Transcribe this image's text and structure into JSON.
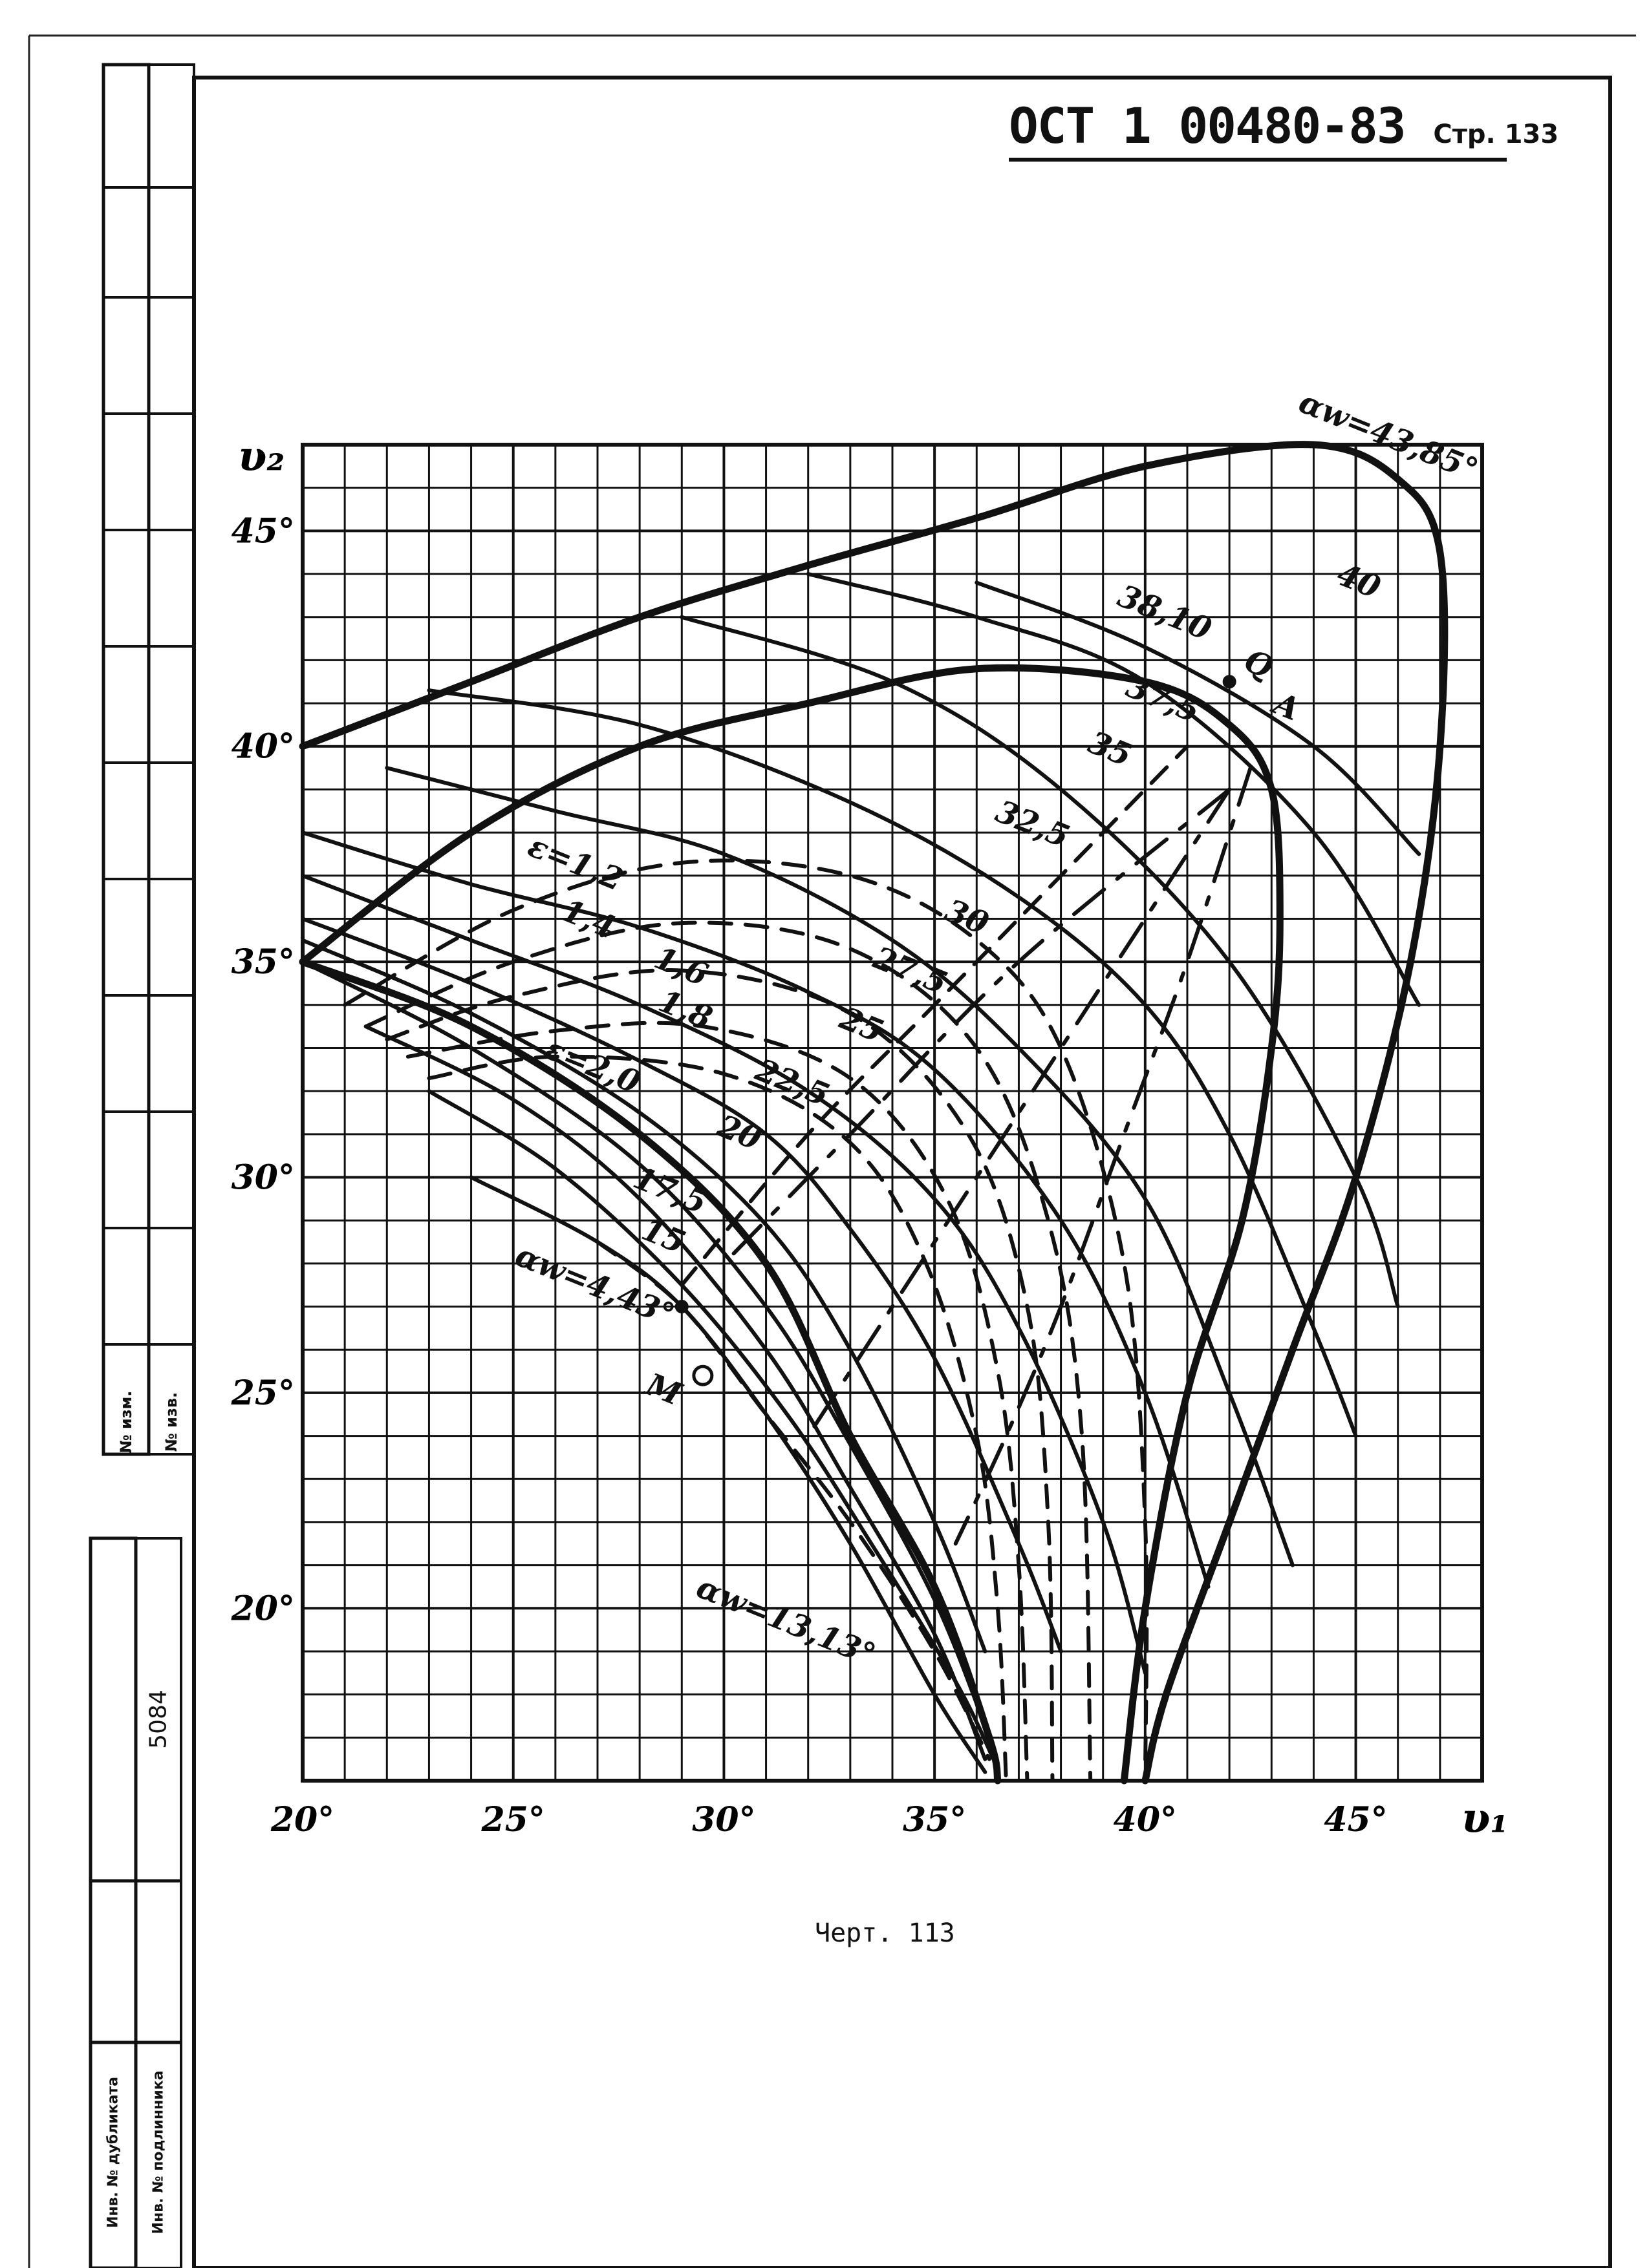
{
  "header": {
    "standard": "ОСТ 1 00480-83",
    "page_label": "Стр. 133"
  },
  "caption": "Черт. 113",
  "side_stamp": {
    "izm_label_1": "№ изм.",
    "izm_label_2": "№ изв.",
    "inventory_number": "5084",
    "dup_label": "Инв. № дубликата",
    "orig_label": "Инв. № подлинника"
  },
  "chart_data": {
    "type": "line",
    "xlabel": "υ₁",
    "ylabel": "υ₂",
    "xlim": [
      20,
      48
    ],
    "ylim": [
      16,
      47
    ],
    "grid": true,
    "x_ticks": [
      "20°",
      "25°",
      "30°",
      "35°",
      "40°",
      "45°"
    ],
    "y_ticks": [
      "20°",
      "25°",
      "30°",
      "35°",
      "40°",
      "45°"
    ],
    "series": [
      {
        "name": "αw=43,85°",
        "style": "envelope",
        "points": [
          [
            20,
            40
          ],
          [
            24,
            41.5
          ],
          [
            28,
            43
          ],
          [
            32,
            44.2
          ],
          [
            36,
            45.3
          ],
          [
            40,
            46.5
          ],
          [
            44,
            47
          ],
          [
            46,
            46.2
          ],
          [
            47,
            44.5
          ],
          [
            47,
            40
          ],
          [
            46.3,
            35
          ],
          [
            45,
            30
          ],
          [
            43.5,
            26
          ],
          [
            42,
            22
          ],
          [
            40.5,
            18
          ],
          [
            40,
            16
          ]
        ]
      },
      {
        "name": "Q",
        "style": "envelope",
        "points": [
          [
            20,
            35
          ],
          [
            24,
            38
          ],
          [
            28,
            40
          ],
          [
            32,
            41
          ],
          [
            36,
            41.8
          ],
          [
            40,
            41.5
          ],
          [
            42,
            40.5
          ],
          [
            43,
            39
          ],
          [
            43.2,
            36
          ],
          [
            43,
            33
          ],
          [
            42.3,
            29
          ],
          [
            41,
            25
          ],
          [
            40,
            20
          ],
          [
            39.5,
            16
          ]
        ]
      },
      {
        "name": "αw=13,13°",
        "style": "envelope",
        "points": [
          [
            20,
            35
          ],
          [
            24,
            33.5
          ],
          [
            28,
            31
          ],
          [
            31,
            28
          ],
          [
            33,
            24
          ],
          [
            35,
            20.5
          ],
          [
            36.3,
            17
          ],
          [
            36.5,
            16
          ]
        ]
      },
      {
        "name": "40",
        "style": "family",
        "points": [
          [
            36,
            43.8
          ],
          [
            40,
            42.3
          ],
          [
            44,
            40
          ],
          [
            46.5,
            37.5
          ]
        ]
      },
      {
        "name": "38,10",
        "style": "family",
        "points": [
          [
            32,
            44
          ],
          [
            36,
            43
          ],
          [
            40,
            41.5
          ],
          [
            44,
            38
          ],
          [
            46.5,
            34
          ]
        ]
      },
      {
        "name": "37,5",
        "style": "family",
        "points": [
          [
            29,
            43
          ],
          [
            34,
            41.5
          ],
          [
            38,
            39
          ],
          [
            42,
            35
          ],
          [
            45,
            30
          ],
          [
            46,
            27
          ]
        ]
      },
      {
        "name": "35",
        "style": "family",
        "points": [
          [
            23,
            41.3
          ],
          [
            28,
            40.5
          ],
          [
            33,
            38.7
          ],
          [
            37,
            36.5
          ],
          [
            40,
            34
          ],
          [
            42,
            31
          ],
          [
            44,
            26.5
          ],
          [
            45,
            24
          ]
        ]
      },
      {
        "name": "32,5",
        "style": "family",
        "points": [
          [
            22,
            39.5
          ],
          [
            26,
            38.5
          ],
          [
            30,
            37.5
          ],
          [
            34,
            35.5
          ],
          [
            37,
            33
          ],
          [
            40,
            29.5
          ],
          [
            42,
            25
          ],
          [
            43.5,
            21
          ]
        ]
      },
      {
        "name": "30",
        "style": "family",
        "points": [
          [
            20,
            38
          ],
          [
            24,
            36.8
          ],
          [
            28,
            35.8
          ],
          [
            32,
            34.3
          ],
          [
            35,
            32.5
          ],
          [
            38,
            29
          ],
          [
            40,
            25
          ],
          [
            41.5,
            20.5
          ]
        ]
      },
      {
        "name": "27,5",
        "style": "family",
        "points": [
          [
            20,
            37
          ],
          [
            24,
            35.5
          ],
          [
            28,
            34
          ],
          [
            32,
            32
          ],
          [
            35,
            29.5
          ],
          [
            37,
            26.5
          ],
          [
            39,
            22
          ],
          [
            40,
            18.5
          ]
        ]
      },
      {
        "name": "25",
        "style": "family",
        "points": [
          [
            20,
            36
          ],
          [
            24,
            34.5
          ],
          [
            28,
            32.7
          ],
          [
            31,
            31
          ],
          [
            33,
            28.8
          ],
          [
            35,
            25.8
          ],
          [
            37,
            21.5
          ],
          [
            38,
            19
          ]
        ]
      },
      {
        "name": "22,5",
        "style": "family",
        "points": [
          [
            20,
            35.5
          ],
          [
            24,
            33.8
          ],
          [
            28,
            31.5
          ],
          [
            31,
            28.9
          ],
          [
            33,
            26
          ],
          [
            35,
            22
          ],
          [
            36.2,
            19
          ]
        ]
      },
      {
        "name": "20",
        "style": "family",
        "points": [
          [
            20,
            35
          ],
          [
            24,
            33
          ],
          [
            28,
            30.3
          ],
          [
            31,
            27
          ],
          [
            33,
            23.8
          ],
          [
            35,
            20.2
          ],
          [
            36.3,
            17
          ]
        ]
      },
      {
        "name": "17,5",
        "style": "family",
        "points": [
          [
            21.5,
            33.5
          ],
          [
            25,
            31.8
          ],
          [
            28,
            29.5
          ],
          [
            31,
            26
          ],
          [
            33,
            22.8
          ],
          [
            35,
            19.4
          ],
          [
            36.2,
            16.5
          ]
        ]
      },
      {
        "name": "15",
        "style": "family",
        "points": [
          [
            23,
            32
          ],
          [
            26,
            30.2
          ],
          [
            29,
            27.5
          ],
          [
            31.5,
            24.5
          ],
          [
            33.5,
            21.5
          ],
          [
            35.5,
            18.3
          ],
          [
            36.4,
            16.5
          ]
        ]
      },
      {
        "name": "αw=4,43°",
        "style": "family",
        "points": [
          [
            24,
            30
          ],
          [
            27,
            28.5
          ],
          [
            29,
            27
          ],
          [
            31,
            24.5
          ],
          [
            33,
            21.5
          ],
          [
            35,
            18
          ],
          [
            36.2,
            16.2
          ]
        ]
      },
      {
        "name": "ε=1,2",
        "style": "family-dashed",
        "points": [
          [
            21,
            34
          ],
          [
            25,
            36.2
          ],
          [
            29,
            37.3
          ],
          [
            33,
            37
          ],
          [
            36,
            35.5
          ],
          [
            38,
            33
          ],
          [
            39.5,
            28
          ],
          [
            40,
            22
          ],
          [
            40,
            16
          ]
        ]
      },
      {
        "name": "1,4",
        "style": "family-dashed",
        "points": [
          [
            21.5,
            33.5
          ],
          [
            25,
            35
          ],
          [
            29,
            35.9
          ],
          [
            33,
            35.3
          ],
          [
            36,
            33
          ],
          [
            37.7,
            29
          ],
          [
            38.5,
            24
          ],
          [
            38.7,
            16
          ]
        ]
      },
      {
        "name": "1,6",
        "style": "family-dashed",
        "points": [
          [
            22,
            33.2
          ],
          [
            25,
            34.2
          ],
          [
            29,
            34.8
          ],
          [
            33,
            33.8
          ],
          [
            35.8,
            31
          ],
          [
            37.2,
            27
          ],
          [
            37.7,
            22
          ],
          [
            37.8,
            16
          ]
        ]
      },
      {
        "name": "1,8",
        "style": "family-dashed",
        "points": [
          [
            22.5,
            32.8
          ],
          [
            26,
            33.4
          ],
          [
            29.5,
            33.5
          ],
          [
            33,
            32.3
          ],
          [
            35.3,
            29.5
          ],
          [
            36.5,
            25.5
          ],
          [
            37,
            21
          ],
          [
            37.2,
            16
          ]
        ]
      },
      {
        "name": "ε=2,0",
        "style": "family-dashed",
        "points": [
          [
            23,
            32.3
          ],
          [
            26,
            32.8
          ],
          [
            30,
            32.4
          ],
          [
            33,
            30.8
          ],
          [
            34.8,
            28
          ],
          [
            36,
            24
          ],
          [
            36.5,
            20
          ],
          [
            36.7,
            16
          ]
        ]
      },
      {
        "name": "M",
        "style": "family-dashed",
        "points": [
          [
            27,
            28.5
          ],
          [
            29,
            27
          ],
          [
            31,
            24.5
          ],
          [
            33,
            22
          ],
          [
            35,
            19
          ],
          [
            36.3,
            16.5
          ]
        ]
      },
      {
        "name": "A",
        "style": "family-dashed",
        "points": [
          [
            29,
            27.5
          ],
          [
            32,
            31
          ],
          [
            35,
            34
          ],
          [
            38,
            37
          ],
          [
            41,
            40
          ]
        ]
      },
      {
        "name": "",
        "style": "diagonal",
        "points": [
          [
            42,
            39
          ],
          [
            37,
            35
          ],
          [
            33,
            31
          ],
          [
            30,
            28
          ]
        ]
      },
      {
        "name": "",
        "style": "diagonal",
        "points": [
          [
            42,
            39
          ],
          [
            40,
            36
          ],
          [
            38,
            33
          ],
          [
            36,
            30
          ],
          [
            34,
            27
          ],
          [
            32,
            24
          ]
        ]
      },
      {
        "name": "",
        "style": "diagonal",
        "points": [
          [
            42.5,
            39.5
          ],
          [
            41,
            35
          ],
          [
            39.5,
            31
          ],
          [
            38,
            27
          ],
          [
            36.7,
            24
          ],
          [
            35.5,
            21.5
          ]
        ]
      }
    ],
    "labels": [
      {
        "text": "αw=43,85°",
        "x": 43.6,
        "y": 47.8
      },
      {
        "text": "40",
        "x": 44.5,
        "y": 43.8
      },
      {
        "text": "38,10",
        "x": 39.3,
        "y": 43.3
      },
      {
        "text": "Q",
        "x": 42.3,
        "y": 41.8
      },
      {
        "text": "37,5",
        "x": 39.5,
        "y": 41.2
      },
      {
        "text": "A",
        "x": 43,
        "y": 40.8
      },
      {
        "text": "35",
        "x": 38.6,
        "y": 39.9
      },
      {
        "text": "32,5",
        "x": 36.4,
        "y": 38.3
      },
      {
        "text": "ε=1,2",
        "x": 25.3,
        "y": 37.5
      },
      {
        "text": "1,4",
        "x": 26.1,
        "y": 36
      },
      {
        "text": "30",
        "x": 35.2,
        "y": 36
      },
      {
        "text": "1,6",
        "x": 28.3,
        "y": 34.9
      },
      {
        "text": "27,5",
        "x": 33.5,
        "y": 34.9
      },
      {
        "text": "1,8",
        "x": 28.4,
        "y": 33.9
      },
      {
        "text": "25",
        "x": 32.7,
        "y": 33.5
      },
      {
        "text": "ε=2,0",
        "x": 25.7,
        "y": 32.8
      },
      {
        "text": "22,5",
        "x": 30.7,
        "y": 32.3
      },
      {
        "text": "20",
        "x": 29.8,
        "y": 31
      },
      {
        "text": "17,5",
        "x": 27.8,
        "y": 29.8
      },
      {
        "text": "15",
        "x": 28,
        "y": 28.6
      },
      {
        "text": "αw=4,43°",
        "x": 25,
        "y": 28
      },
      {
        "text": "M",
        "x": 28.1,
        "y": 25
      },
      {
        "text": "αw=13,13°",
        "x": 29.3,
        "y": 20.3
      }
    ],
    "markers": [
      {
        "name": "M",
        "x": 29.5,
        "y": 25.4,
        "style": "open"
      },
      {
        "name": "dot-a",
        "x": 29,
        "y": 27,
        "style": "filled"
      },
      {
        "name": "dot-q",
        "x": 42,
        "y": 41.5,
        "style": "filled"
      }
    ]
  }
}
